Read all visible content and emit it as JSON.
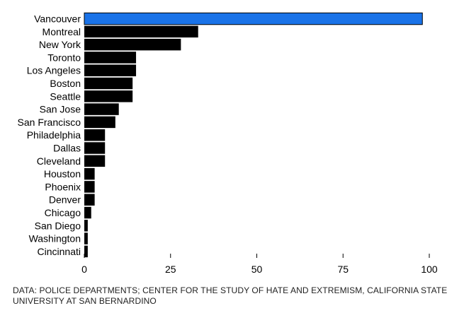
{
  "chart_data": {
    "type": "bar",
    "orientation": "horizontal",
    "categories": [
      "Vancouver",
      "Montreal",
      "New York",
      "Toronto",
      "Los Angeles",
      "Boston",
      "Seattle",
      "San Jose",
      "San Francisco",
      "Philadelphia",
      "Dallas",
      "Cleveland",
      "Houston",
      "Phoenix",
      "Denver",
      "Chicago",
      "San Diego",
      "Washington",
      "Cincinnati"
    ],
    "values": [
      98,
      33,
      28,
      15,
      15,
      14,
      14,
      10,
      9,
      6,
      6,
      6,
      3,
      3,
      3,
      2,
      1,
      1,
      1
    ],
    "xlim": [
      0,
      100
    ],
    "xticks": [
      0,
      25,
      50,
      75,
      100
    ],
    "grid": false,
    "colors": {
      "highlight": "#1a73e8",
      "default": "#000000"
    },
    "highlight_category": "Vancouver"
  },
  "source_note": "DATA: POLICE DEPARTMENTS; CENTER FOR THE STUDY OF HATE AND EXTREMISM, CALIFORNIA STATE UNIVERSITY AT SAN BERNARDINO"
}
